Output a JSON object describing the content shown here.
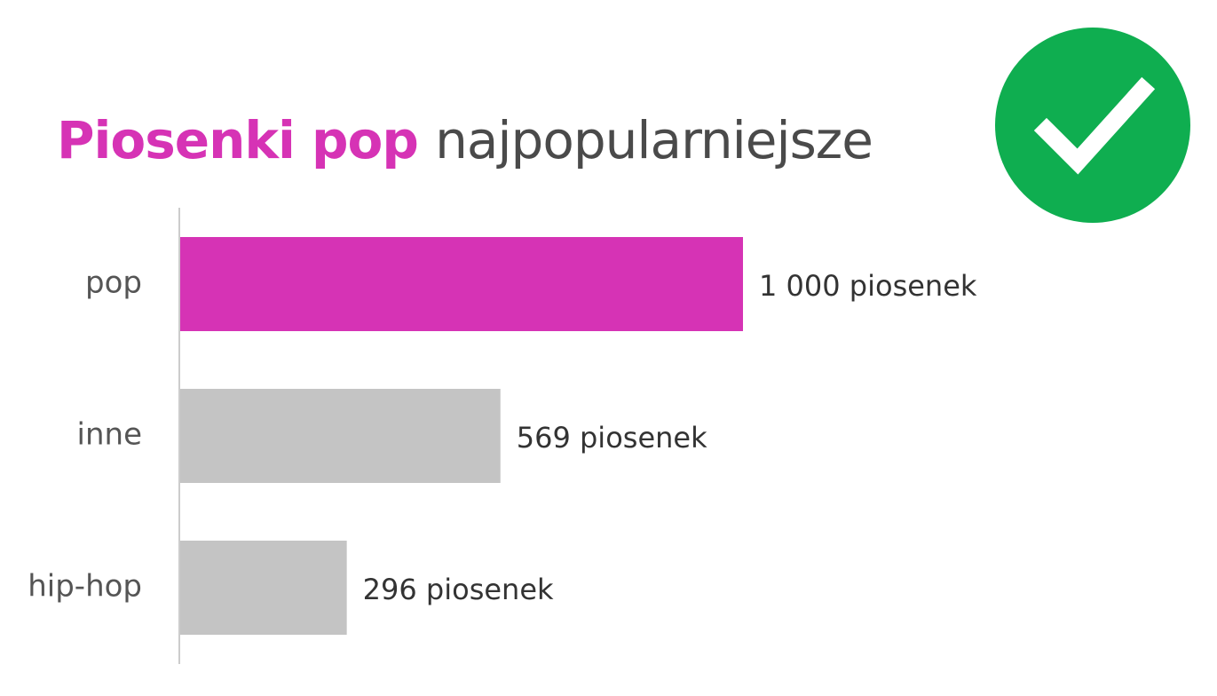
{
  "title": {
    "highlight": "Piosenki pop",
    "rest": "najpopularniejsze"
  },
  "badge": {
    "icon": "check-icon"
  },
  "colors": {
    "accent": "#d633b5",
    "bar_default": "#c4c4c4",
    "badge": "#0fae50",
    "title_rest": "#4a4a4a",
    "axis": "#cccccc"
  },
  "chart_data": {
    "type": "bar",
    "orientation": "horizontal",
    "categories": [
      "pop",
      "inne",
      "hip-hop"
    ],
    "values": [
      1000,
      569,
      296
    ],
    "value_labels": [
      "1 000 piosenek",
      "569 piosenek",
      "296 piosenek"
    ],
    "highlight_category": "pop",
    "xlim": [
      0,
      1000
    ],
    "grid": false,
    "legend": "none"
  }
}
